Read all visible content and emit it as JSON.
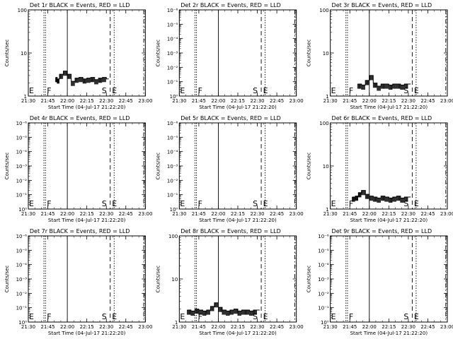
{
  "layout": {
    "rows": 3,
    "cols": 3
  },
  "chart_data": [
    {
      "type": "line",
      "title": "Det 1r BLACK = Events, RED = LLD",
      "xlabel": "Start Time (04-Jul-17 21:22:20)",
      "ylabel": "Counts/sec",
      "xlim": [
        21.5,
        23.0
      ],
      "yscale": "log",
      "ylim": [
        1,
        100
      ],
      "ytick_labels": [
        "1",
        "10",
        "100"
      ],
      "xtick_labels": [
        "21:30",
        "21:45",
        "22:00",
        "22:15",
        "22:30",
        "22:45",
        "23:00"
      ],
      "markers": [
        {
          "type": "dotted",
          "x": 21.7,
          "label": "E"
        },
        {
          "type": "dotted",
          "x": 21.72,
          "label": "F"
        },
        {
          "type": "solid",
          "x": 22.0,
          "label": ""
        },
        {
          "type": "dashed",
          "x": 22.55,
          "label": "S"
        },
        {
          "type": "dotted",
          "x": 22.6,
          "label": "E"
        },
        {
          "type": "dashdot",
          "x": 22.98,
          "label": ""
        }
      ],
      "series": [
        {
          "color": "#000000",
          "x": [
            21.85,
            21.87,
            21.9,
            21.95,
            22.0,
            22.05,
            22.1,
            22.15,
            22.2,
            22.25,
            22.3,
            22.35,
            22.4,
            22.45,
            22.5
          ],
          "values": [
            2.7,
            2.5,
            3.2,
            3.8,
            3.2,
            2.2,
            2.6,
            2.7,
            2.5,
            2.6,
            2.7,
            2.4,
            2.6,
            2.7,
            2.5
          ]
        }
      ]
    },
    {
      "type": "line",
      "title": "Det 2r BLACK = Events, RED = LLD",
      "xlabel": "Start Time (04-Jul-17 21:22:20)",
      "ylabel": "Counts/sec",
      "xlim": [
        21.5,
        23.0
      ],
      "yscale": "log",
      "ylim": [
        1e-06,
        1
      ],
      "ytick_labels": [
        "10⁰",
        "10⁻¹",
        "10⁻²",
        "10⁻³",
        "10⁻⁴",
        "10⁻⁵",
        "10⁻⁶"
      ],
      "xtick_labels": [
        "21:30",
        "21:45",
        "22:00",
        "22:15",
        "22:30",
        "22:45",
        "23:00"
      ],
      "markers": [
        {
          "type": "dotted",
          "x": 21.7,
          "label": "E"
        },
        {
          "type": "dotted",
          "x": 21.72,
          "label": "F"
        },
        {
          "type": "solid",
          "x": 22.0,
          "label": ""
        },
        {
          "type": "dashed",
          "x": 22.55,
          "label": "S"
        },
        {
          "type": "dotted",
          "x": 22.6,
          "label": "E"
        },
        {
          "type": "dashdot",
          "x": 22.98,
          "label": ""
        }
      ],
      "series": []
    },
    {
      "type": "line",
      "title": "Det 3r BLACK = Events, RED = LLD",
      "xlabel": "Start Time (04-Jul-17 21:22:20)",
      "ylabel": "Counts/sec",
      "xlim": [
        21.5,
        23.0
      ],
      "yscale": "log",
      "ylim": [
        1,
        100
      ],
      "ytick_labels": [
        "1",
        "10",
        "100"
      ],
      "xtick_labels": [
        "21:30",
        "21:45",
        "22:00",
        "22:15",
        "22:30",
        "22:45",
        "23:00"
      ],
      "markers": [
        {
          "type": "dotted",
          "x": 21.7,
          "label": "E"
        },
        {
          "type": "dotted",
          "x": 21.72,
          "label": "F"
        },
        {
          "type": "solid",
          "x": 22.0,
          "label": ""
        },
        {
          "type": "dashed",
          "x": 22.55,
          "label": "S"
        },
        {
          "type": "dotted",
          "x": 22.6,
          "label": "E"
        },
        {
          "type": "dashdot",
          "x": 22.98,
          "label": ""
        }
      ],
      "series": [
        {
          "color": "#000000",
          "x": [
            21.85,
            21.9,
            21.95,
            22.0,
            22.05,
            22.1,
            22.15,
            22.2,
            22.25,
            22.3,
            22.35,
            22.4,
            22.45,
            22.5
          ],
          "values": [
            1.9,
            1.8,
            2.3,
            3.0,
            2.0,
            1.7,
            1.9,
            1.9,
            1.8,
            1.9,
            1.9,
            1.8,
            1.9,
            1.9
          ]
        }
      ]
    },
    {
      "type": "line",
      "title": "Det 4r BLACK = Events, RED = LLD",
      "xlabel": "Start Time (04-Jul-17 21:22:20)",
      "ylabel": "Counts/sec",
      "xlim": [
        21.5,
        23.0
      ],
      "yscale": "log",
      "ylim": [
        1e-06,
        1
      ],
      "ytick_labels": [
        "10⁰",
        "10⁻¹",
        "10⁻²",
        "10⁻³",
        "10⁻⁴",
        "10⁻⁵",
        "10⁻⁶"
      ],
      "xtick_labels": [
        "21:30",
        "21:45",
        "22:00",
        "22:15",
        "22:30",
        "22:45",
        "23:00"
      ],
      "markers": [
        {
          "type": "dotted",
          "x": 21.7,
          "label": "E"
        },
        {
          "type": "dotted",
          "x": 21.72,
          "label": "F"
        },
        {
          "type": "solid",
          "x": 22.0,
          "label": ""
        },
        {
          "type": "dashed",
          "x": 22.55,
          "label": "S"
        },
        {
          "type": "dotted",
          "x": 22.6,
          "label": "E"
        },
        {
          "type": "dashdot",
          "x": 22.98,
          "label": ""
        }
      ],
      "series": []
    },
    {
      "type": "line",
      "title": "Det 5r BLACK = Events, RED = LLD",
      "xlabel": "Start Time (04-Jul-17 21:22:20)",
      "ylabel": "Counts/sec",
      "xlim": [
        21.5,
        23.0
      ],
      "yscale": "log",
      "ylim": [
        1e-06,
        1
      ],
      "ytick_labels": [
        "10⁰",
        "10⁻¹",
        "10⁻²",
        "10⁻³",
        "10⁻⁴",
        "10⁻⁵",
        "10⁻⁶"
      ],
      "xtick_labels": [
        "21:30",
        "21:45",
        "22:00",
        "22:15",
        "22:30",
        "22:45",
        "23:00"
      ],
      "markers": [
        {
          "type": "dotted",
          "x": 21.7,
          "label": "E"
        },
        {
          "type": "dotted",
          "x": 21.72,
          "label": "F"
        },
        {
          "type": "solid",
          "x": 22.0,
          "label": ""
        },
        {
          "type": "dashed",
          "x": 22.55,
          "label": "S"
        },
        {
          "type": "dotted",
          "x": 22.6,
          "label": "E"
        },
        {
          "type": "dashdot",
          "x": 22.98,
          "label": ""
        }
      ],
      "series": []
    },
    {
      "type": "line",
      "title": "Det 6r BLACK = Events, RED = LLD",
      "xlabel": "Start Time (04-Jul-17 21:22:20)",
      "ylabel": "Counts/sec",
      "xlim": [
        21.5,
        23.0
      ],
      "yscale": "log",
      "ylim": [
        1,
        100
      ],
      "ytick_labels": [
        "1",
        "10",
        "100"
      ],
      "xtick_labels": [
        "21:30",
        "21:45",
        "22:00",
        "22:15",
        "22:30",
        "22:45",
        "23:00"
      ],
      "markers": [
        {
          "type": "dotted",
          "x": 21.7,
          "label": "E"
        },
        {
          "type": "dotted",
          "x": 21.72,
          "label": "F"
        },
        {
          "type": "solid",
          "x": 22.0,
          "label": ""
        },
        {
          "type": "dashed",
          "x": 22.55,
          "label": "S"
        },
        {
          "type": "dotted",
          "x": 22.6,
          "label": "E"
        },
        {
          "type": "dashdot",
          "x": 22.98,
          "label": ""
        }
      ],
      "series": [
        {
          "color": "#000000",
          "x": [
            21.78,
            21.82,
            21.86,
            21.9,
            21.95,
            22.0,
            22.05,
            22.1,
            22.15,
            22.2,
            22.25,
            22.3,
            22.35,
            22.4,
            22.45,
            22.5
          ],
          "values": [
            1.9,
            2.0,
            2.4,
            2.7,
            2.2,
            2.0,
            1.9,
            1.8,
            2.0,
            1.9,
            1.8,
            1.9,
            2.0,
            1.8,
            1.9,
            1.9
          ]
        }
      ]
    },
    {
      "type": "line",
      "title": "Det 7r BLACK = Events, RED = LLD",
      "xlabel": "Start Time (04-Jul-17 21:22:20)",
      "ylabel": "Counts/sec",
      "xlim": [
        21.5,
        23.0
      ],
      "yscale": "log",
      "ylim": [
        1e-06,
        1
      ],
      "ytick_labels": [
        "10⁰",
        "10⁻¹",
        "10⁻²",
        "10⁻³",
        "10⁻⁴",
        "10⁻⁵",
        "10⁻⁶"
      ],
      "xtick_labels": [
        "21:30",
        "21:45",
        "22:00",
        "22:15",
        "22:30",
        "22:45",
        "23:00"
      ],
      "markers": [
        {
          "type": "dotted",
          "x": 21.7,
          "label": "E"
        },
        {
          "type": "dotted",
          "x": 21.72,
          "label": "F"
        },
        {
          "type": "solid",
          "x": 22.0,
          "label": ""
        },
        {
          "type": "dashed",
          "x": 22.55,
          "label": "S"
        },
        {
          "type": "dotted",
          "x": 22.6,
          "label": "E"
        },
        {
          "type": "dashdot",
          "x": 22.98,
          "label": ""
        }
      ],
      "series": []
    },
    {
      "type": "line",
      "title": "Det 8r BLACK = Events, RED = LLD",
      "xlabel": "Start Time (04-Jul-17 21:22:20)",
      "ylabel": "Counts/sec",
      "xlim": [
        21.5,
        23.0
      ],
      "yscale": "log",
      "ylim": [
        1,
        100
      ],
      "ytick_labels": [
        "1",
        "10",
        "100"
      ],
      "xtick_labels": [
        "21:30",
        "21:45",
        "22:00",
        "22:15",
        "22:30",
        "22:45",
        "23:00"
      ],
      "markers": [
        {
          "type": "dotted",
          "x": 21.7,
          "label": "E"
        },
        {
          "type": "dotted",
          "x": 21.72,
          "label": "F"
        },
        {
          "type": "solid",
          "x": 22.0,
          "label": ""
        },
        {
          "type": "dashed",
          "x": 22.55,
          "label": "S"
        },
        {
          "type": "dotted",
          "x": 22.6,
          "label": "E"
        },
        {
          "type": "dashdot",
          "x": 22.98,
          "label": ""
        }
      ],
      "series": [
        {
          "color": "#000000",
          "x": [
            21.6,
            21.65,
            21.7,
            21.75,
            21.8,
            21.85,
            21.9,
            21.95,
            22.0,
            22.05,
            22.1,
            22.15,
            22.2,
            22.25,
            22.3,
            22.35,
            22.4,
            22.45,
            22.5
          ],
          "values": [
            1.9,
            1.8,
            2.0,
            1.9,
            1.8,
            1.9,
            2.3,
            2.8,
            2.2,
            1.9,
            1.8,
            1.9,
            2.0,
            1.8,
            1.9,
            1.9,
            1.8,
            1.9,
            1.9
          ]
        }
      ]
    },
    {
      "type": "line",
      "title": "Det 9r BLACK = Events, RED = LLD",
      "xlabel": "Start Time (04-Jul-17 21:22:20)",
      "ylabel": "Counts/sec",
      "xlim": [
        21.5,
        23.0
      ],
      "yscale": "log",
      "ylim": [
        1e-06,
        1
      ],
      "ytick_labels": [
        "10⁰",
        "10⁻¹",
        "10⁻²",
        "10⁻³",
        "10⁻⁴",
        "10⁻⁵",
        "10⁻⁶"
      ],
      "xtick_labels": [
        "21:30",
        "21:45",
        "22:00",
        "22:15",
        "22:30",
        "22:45",
        "23:00"
      ],
      "markers": [
        {
          "type": "dotted",
          "x": 21.7,
          "label": "E"
        },
        {
          "type": "dotted",
          "x": 21.72,
          "label": "F"
        },
        {
          "type": "solid",
          "x": 22.0,
          "label": ""
        },
        {
          "type": "dashed",
          "x": 22.55,
          "label": "S"
        },
        {
          "type": "dotted",
          "x": 22.6,
          "label": "E"
        },
        {
          "type": "dashdot",
          "x": 22.98,
          "label": ""
        }
      ],
      "series": []
    }
  ]
}
